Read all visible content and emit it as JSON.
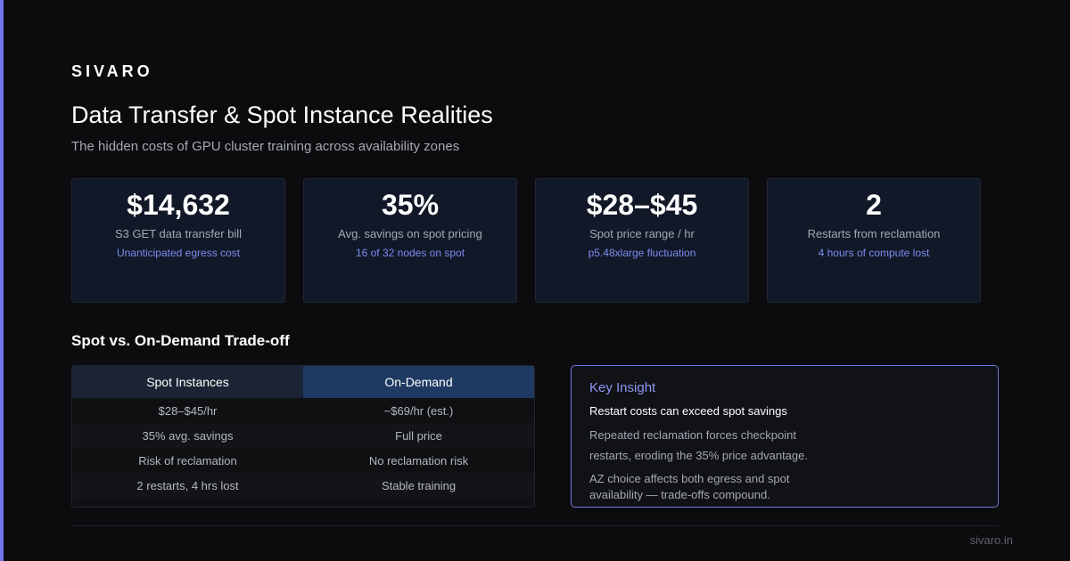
{
  "brand": "SIVARO",
  "header": {
    "title": "Data Transfer & Spot Instance Realities",
    "subtitle": "The hidden costs of GPU cluster training across availability zones"
  },
  "stats": [
    {
      "value": "$14,632",
      "label": "S3 GET data transfer bill",
      "note": "Unanticipated egress cost"
    },
    {
      "value": "35%",
      "label": "Avg. savings on spot pricing",
      "note": "16 of 32 nodes on spot"
    },
    {
      "value": "$28–$45",
      "label": "Spot price range / hr",
      "note": "p5.48xlarge fluctuation"
    },
    {
      "value": "2",
      "label": "Restarts from reclamation",
      "note": "4 hours of compute lost"
    }
  ],
  "comparison": {
    "heading": "Spot vs. On-Demand Trade-off",
    "columns": [
      "Spot Instances",
      "On-Demand"
    ],
    "rows": [
      [
        "$28–$45/hr",
        "~$69/hr (est.)"
      ],
      [
        "35% avg. savings",
        "Full price"
      ],
      [
        "Risk of reclamation",
        "No reclamation risk"
      ],
      [
        "2 restarts, 4 hrs lost",
        "Stable training"
      ]
    ]
  },
  "insight": {
    "title": "Key Insight",
    "lead": "Restart costs can exceed spot savings",
    "body": "Repeated reclamation forces checkpoint restarts, eroding the 35% price advantage.",
    "body2": "AZ choice affects both egress and spot availability — trade-offs compound."
  },
  "footer": {
    "link": "sivaro.in"
  },
  "colors": {
    "accent": "#6d76e6",
    "background": "#0c0c0f",
    "card": "#111827",
    "on_demand_header": "#1e3a62",
    "note": "#7d8cf0"
  }
}
